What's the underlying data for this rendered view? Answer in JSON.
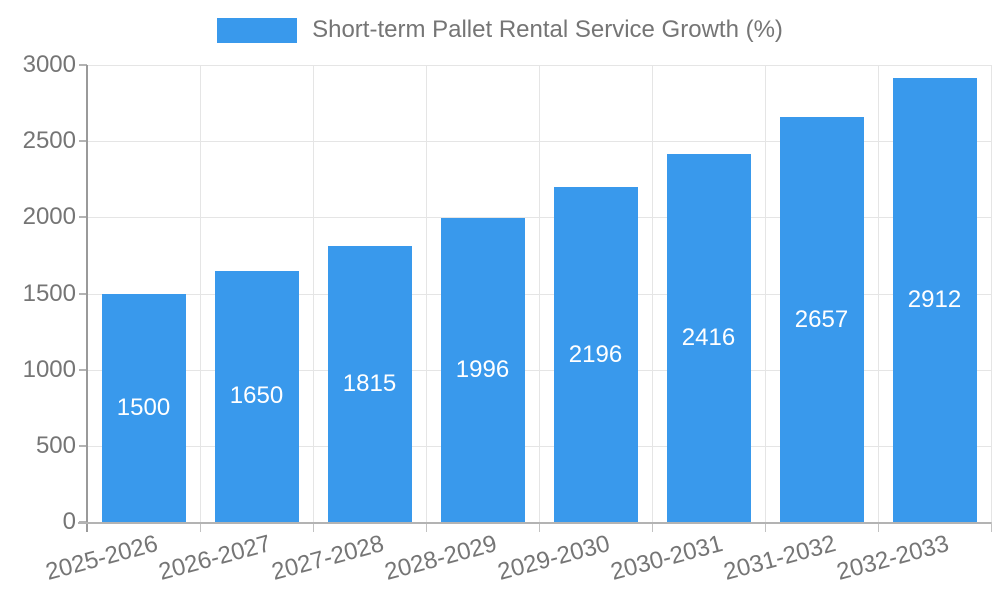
{
  "legend": {
    "label": "Short-term Pallet Rental Service Growth (%)"
  },
  "chart_data": {
    "type": "bar",
    "title": "Short-term Pallet Rental Service Growth (%)",
    "categories": [
      "2025-2026",
      "2026-2027",
      "2027-2028",
      "2028-2029",
      "2029-2030",
      "2030-2031",
      "2031-2032",
      "2032-2033"
    ],
    "values": [
      1500,
      1650,
      1815,
      1996,
      2196,
      2416,
      2657,
      2912
    ],
    "xlabel": "",
    "ylabel": "",
    "ylim": [
      0,
      3000
    ],
    "yticks": [
      0,
      500,
      1000,
      1500,
      2000,
      2500,
      3000
    ],
    "grid": "on",
    "legend_position": "top-center",
    "value_labels": "inside-center-white",
    "bar_color": "#3999ec",
    "value_label_color": "#ffffff",
    "axis_text_color": "#757575",
    "grid_color": "#e5e5e5",
    "axis_line_color": "#9a9a9a"
  }
}
